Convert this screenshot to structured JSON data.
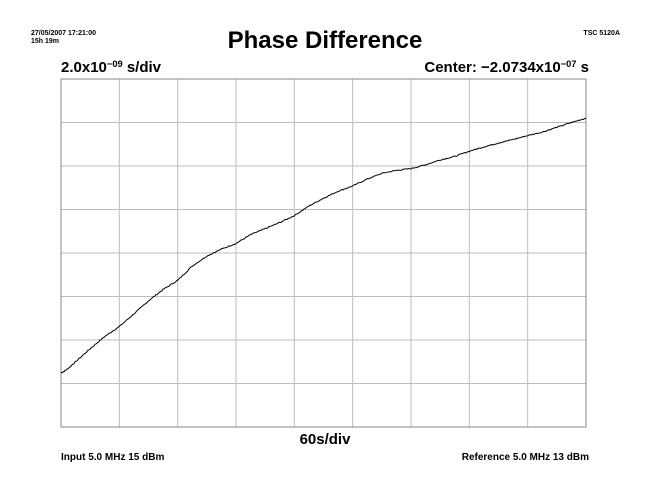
{
  "header": {
    "timestamp": "27/05/2007 17:21:00",
    "duration": "15h 19m",
    "model": "TSC 5120A"
  },
  "chart_data": {
    "type": "line",
    "title": "Phase Difference",
    "y_scale": {
      "mantissa": "2.0x10",
      "exponent": "−09",
      "unit": "s/div"
    },
    "center": {
      "prefix": "Center: −2.0734x10",
      "exponent": "−07",
      "unit": "s"
    },
    "x_scale": "60s/div",
    "x_divisions": 9,
    "y_divisions": 8,
    "xlim": [
      0,
      9
    ],
    "ylim": [
      -4,
      4
    ],
    "grid": true,
    "series": [
      {
        "x": [
          0,
          0.1,
          0.25,
          0.5,
          0.75,
          1.0,
          1.25,
          1.5,
          1.75,
          2.0,
          2.25,
          2.5,
          2.75,
          3.0,
          3.25,
          3.5,
          3.75,
          4.0,
          4.25,
          4.5,
          4.75,
          5.0,
          5.25,
          5.5,
          5.75,
          6.0,
          6.25,
          6.5,
          6.75,
          7.0,
          7.25,
          7.5,
          7.75,
          8.0,
          8.25,
          8.5,
          8.75,
          9.0
        ],
        "y": [
          -2.76,
          -2.68,
          -2.5,
          -2.2,
          -1.92,
          -1.69,
          -1.4,
          -1.1,
          -0.84,
          -0.63,
          -0.3,
          -0.07,
          0.09,
          0.22,
          0.42,
          0.56,
          0.7,
          0.86,
          1.08,
          1.26,
          1.42,
          1.54,
          1.7,
          1.83,
          1.9,
          1.94,
          2.03,
          2.14,
          2.22,
          2.34,
          2.44,
          2.53,
          2.61,
          2.7,
          2.78,
          2.89,
          3.0,
          3.1
        ]
      }
    ]
  },
  "footer": {
    "input": "Input 5.0 MHz 15 dBm",
    "reference": "Reference 5.0 MHz 13 dBm"
  }
}
